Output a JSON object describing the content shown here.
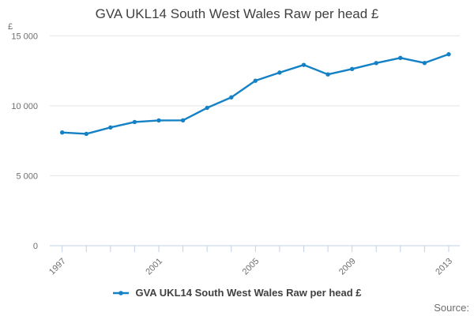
{
  "title": "GVA UKL14 South West Wales Raw per head £",
  "legend": {
    "label": "GVA UKL14 South West Wales Raw per head £"
  },
  "source_label": "Source:",
  "chart_data": {
    "type": "line",
    "title": "GVA UKL14 South West Wales Raw per head £",
    "x": [
      1997,
      1998,
      1999,
      2000,
      2001,
      2002,
      2003,
      2004,
      2005,
      2006,
      2007,
      2008,
      2009,
      2010,
      2011,
      2012,
      2013
    ],
    "series": [
      {
        "name": "GVA UKL14 South West Wales Raw per head £",
        "values": [
          8090,
          7990,
          8450,
          8840,
          8950,
          8960,
          9850,
          10600,
          11790,
          12370,
          12920,
          12240,
          12630,
          13050,
          13420,
          13060,
          13680
        ]
      }
    ],
    "xlabel": "",
    "ylabel": "£",
    "ylim": [
      0,
      15000
    ],
    "ytick_values": [
      15000,
      10000,
      5000,
      0
    ],
    "ytick_labels": [
      "15 000",
      "10 000",
      "5 000",
      "0"
    ],
    "xtick_labeled_years": [
      1997,
      2001,
      2005,
      2009,
      2013
    ],
    "grid": true,
    "legend_position": "bottom",
    "colors": {
      "line": "#1581c5",
      "grid": "#e4e4e4",
      "axis": "#c4d0e4",
      "tick_label": "#6e6e6e",
      "title": "#414042",
      "source": "#6d6e71"
    }
  }
}
